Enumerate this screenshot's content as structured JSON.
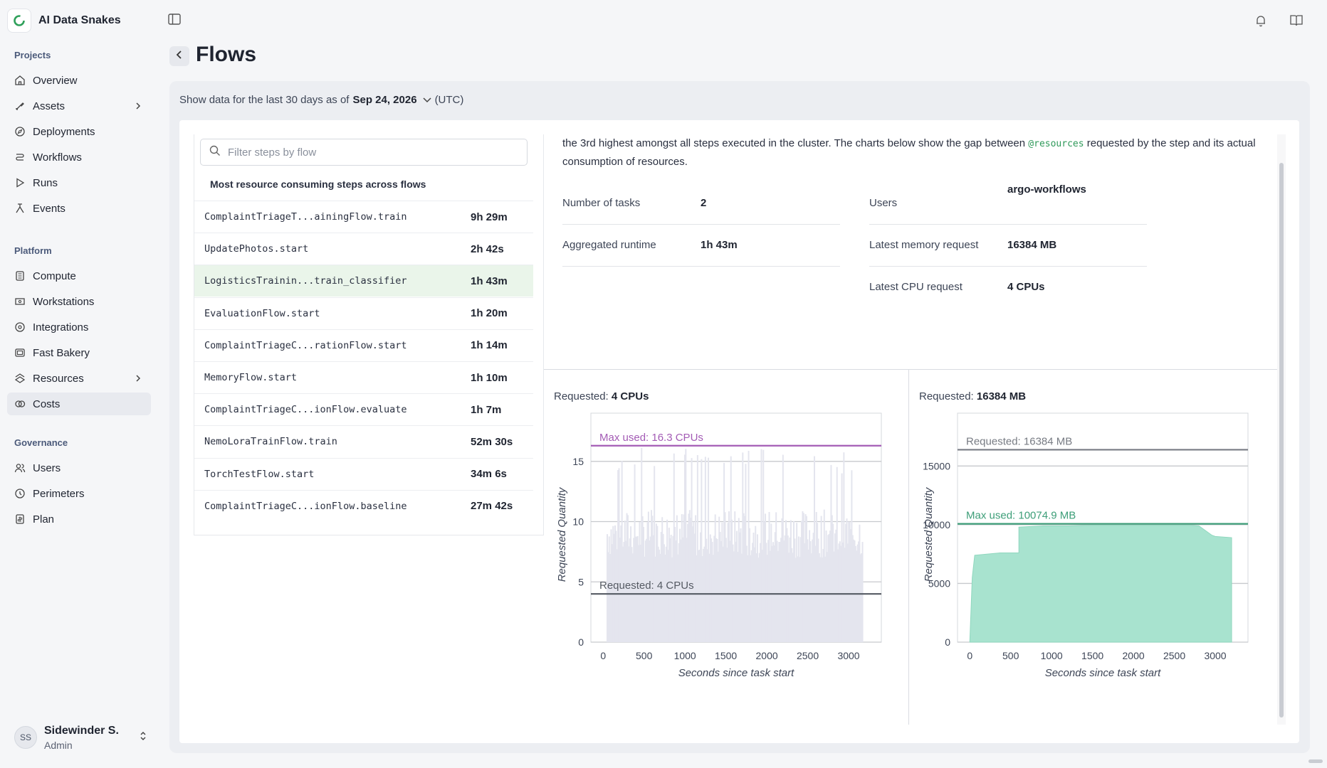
{
  "org": {
    "name": "AI Data Snakes"
  },
  "sidebar": {
    "sections": [
      {
        "title": "Projects",
        "items": [
          {
            "label": "Overview",
            "icon": "home-icon"
          },
          {
            "label": "Assets",
            "icon": "assets-icon",
            "chevron": true
          },
          {
            "label": "Deployments",
            "icon": "compass-icon"
          },
          {
            "label": "Workflows",
            "icon": "workflow-icon"
          },
          {
            "label": "Runs",
            "icon": "play-icon"
          },
          {
            "label": "Events",
            "icon": "event-icon"
          }
        ]
      },
      {
        "title": "Platform",
        "items": [
          {
            "label": "Compute",
            "icon": "compute-icon"
          },
          {
            "label": "Workstations",
            "icon": "workstation-icon"
          },
          {
            "label": "Integrations",
            "icon": "integrations-icon"
          },
          {
            "label": "Fast Bakery",
            "icon": "bakery-icon"
          },
          {
            "label": "Resources",
            "icon": "resources-icon",
            "chevron": true
          },
          {
            "label": "Costs",
            "icon": "costs-icon",
            "active": true
          }
        ]
      },
      {
        "title": "Governance",
        "items": [
          {
            "label": "Users",
            "icon": "users-icon"
          },
          {
            "label": "Perimeters",
            "icon": "perimeter-icon"
          },
          {
            "label": "Plan",
            "icon": "plan-icon"
          }
        ]
      }
    ]
  },
  "user": {
    "initials": "SS",
    "name": "Sidewinder S.",
    "role": "Admin"
  },
  "page": {
    "title": "Flows"
  },
  "date_filter": {
    "prefix": "Show data for the last 30 days as of",
    "date": "Sep 24, 2026",
    "tz": "(UTC)"
  },
  "steps": {
    "filter_placeholder": "Filter steps by flow",
    "heading": "Most resource consuming steps across flows",
    "rows": [
      {
        "name": "ComplaintTriageT...ainingFlow.train",
        "time": "9h 29m"
      },
      {
        "name": "UpdatePhotos.start",
        "time": "2h 42s"
      },
      {
        "name": "LogisticsTrainin...train_classifier",
        "time": "1h 43m",
        "selected": true
      },
      {
        "name": "EvaluationFlow.start",
        "time": "1h 20m"
      },
      {
        "name": "ComplaintTriageC...rationFlow.start",
        "time": "1h 14m"
      },
      {
        "name": "MemoryFlow.start",
        "time": "1h 10m"
      },
      {
        "name": "ComplaintTriageC...ionFlow.evaluate",
        "time": "1h 7m"
      },
      {
        "name": "NemoLoraTrainFlow.train",
        "time": "52m 30s"
      },
      {
        "name": "TorchTestFlow.start",
        "time": "34m 6s"
      },
      {
        "name": "ComplaintTriageC...ionFlow.baseline",
        "time": "27m 42s"
      }
    ]
  },
  "detail": {
    "desc_before": "the 3rd highest amongst all steps executed in the cluster. The charts below show the gap between ",
    "desc_code": "@resources",
    "desc_after": " requested by the step and its actual consumption of resources.",
    "stats_left": [
      {
        "label": "Number of tasks",
        "value": "2"
      },
      {
        "label": "Aggregated runtime",
        "value": "1h 43m"
      }
    ],
    "stats_right": [
      {
        "label": "Users",
        "value": "argo-workflows"
      },
      {
        "label": "Latest memory request",
        "value": "16384 MB"
      },
      {
        "label": "Latest CPU request",
        "value": "4 CPUs"
      }
    ]
  },
  "chart_data": [
    {
      "type": "area",
      "title_prefix": "Requested:",
      "title_value": "4 CPUs",
      "xlabel": "Seconds since task start",
      "ylabel": "Requested Quantity",
      "xlim": [
        -150,
        3400
      ],
      "ylim": [
        0,
        19
      ],
      "xticks": [
        0,
        500,
        1000,
        1500,
        2000,
        2500,
        3000
      ],
      "yticks": [
        0,
        5,
        10,
        15
      ],
      "colors": {
        "usage": "#e4e5ee",
        "max": "#a35bb5",
        "requested": "#555a63"
      },
      "reference_lines": [
        {
          "label": "Max used: 16.3 CPUs",
          "value": 16.3
        },
        {
          "label": "Requested: 4 CPUs",
          "value": 4
        }
      ],
      "usage_range": [
        50,
        3180
      ],
      "usage_typical": [
        7,
        11
      ],
      "usage_peaks": [
        14,
        16.3
      ]
    },
    {
      "type": "area",
      "title_prefix": "Requested:",
      "title_value": "16384 MB",
      "xlabel": "Seconds since task start",
      "ylabel": "Requested Quantity",
      "xlim": [
        -150,
        3400
      ],
      "ylim": [
        0,
        19500
      ],
      "xticks": [
        0,
        500,
        1000,
        1500,
        2000,
        2500,
        3000
      ],
      "yticks": [
        0,
        5000,
        10000,
        15000
      ],
      "colors": {
        "usage": "#a8e3cf",
        "max": "#3d9e78",
        "requested": "#777b83"
      },
      "reference_lines": [
        {
          "label": "Requested: 16384 MB",
          "value": 16384
        },
        {
          "label": "Max used: 10074.9 MB",
          "value": 10074.9
        }
      ],
      "usage_series": {
        "x": [
          0,
          30,
          60,
          370,
          600,
          600,
          900,
          1200,
          1500,
          1800,
          2100,
          2400,
          2700,
          2800,
          2960,
          3000,
          3200
        ],
        "y": [
          0,
          5500,
          7400,
          7600,
          7600,
          9800,
          9900,
          9900,
          9950,
          9950,
          9950,
          9950,
          9950,
          9900,
          9100,
          9000,
          8900
        ]
      }
    }
  ]
}
